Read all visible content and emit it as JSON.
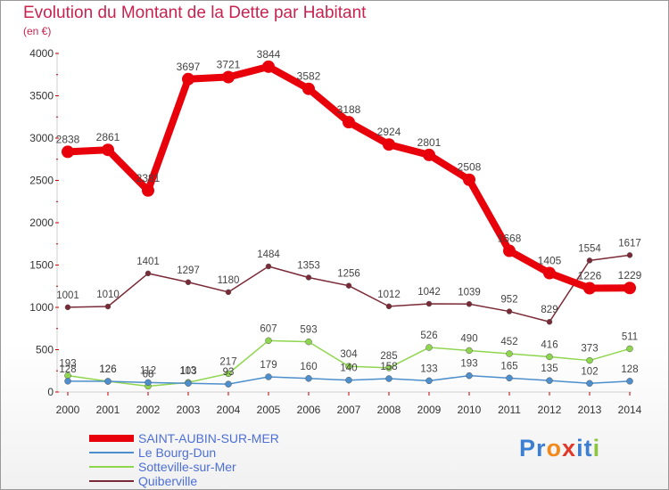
{
  "header": {
    "title": "Evolution du Montant de la Dette par Habitant",
    "subtitle": "(en €)"
  },
  "chart_data": {
    "type": "line",
    "title": "Evolution du Montant de la Dette par Habitant",
    "ylabel": "(en €)",
    "xlabel": "",
    "x": [
      "2000",
      "2001",
      "2002",
      "2003",
      "2004",
      "2005",
      "2006",
      "2007",
      "2008",
      "2009",
      "2010",
      "2011",
      "2012",
      "2013",
      "2014"
    ],
    "ylim": [
      0,
      4000
    ],
    "yticks": [
      0,
      500,
      1000,
      1500,
      2000,
      2500,
      3000,
      3500,
      4000
    ],
    "grid": false,
    "legend_position": "bottom-left",
    "series": [
      {
        "name": "SAINT-AUBIN-SUR-MER",
        "color": "#e8000b",
        "values": [
          2838,
          2861,
          2381,
          3697,
          3721,
          3844,
          3582,
          3188,
          2924,
          2801,
          2508,
          1668,
          1405,
          1226,
          1229
        ]
      },
      {
        "name": "Le Bourg-Dun",
        "color": "#4d8fcc",
        "values": [
          128,
          126,
          112,
          103,
          93,
          179,
          160,
          140,
          158,
          133,
          193,
          165,
          135,
          102,
          128
        ]
      },
      {
        "name": "Sotteville-sur-Mer",
        "color": "#8fd64f",
        "values": [
          193,
          126,
          68,
          113,
          217,
          607,
          593,
          304,
          285,
          526,
          490,
          452,
          416,
          373,
          511
        ]
      },
      {
        "name": "Quiberville",
        "color": "#7a2a36",
        "values": [
          1001,
          1010,
          1401,
          1297,
          1180,
          1484,
          1353,
          1256,
          1012,
          1042,
          1039,
          952,
          829,
          1554,
          1617
        ]
      }
    ]
  },
  "logo": {
    "text": "Proxiti",
    "letters": [
      "P",
      "r",
      "o",
      "x",
      "i",
      "t",
      "i"
    ],
    "colors": [
      "#3c7fd2",
      "#3c7fd2",
      "#f08a1c",
      "#e23a2a",
      "#3c7fd2",
      "#3c7fd2",
      "#8cc63f"
    ]
  }
}
